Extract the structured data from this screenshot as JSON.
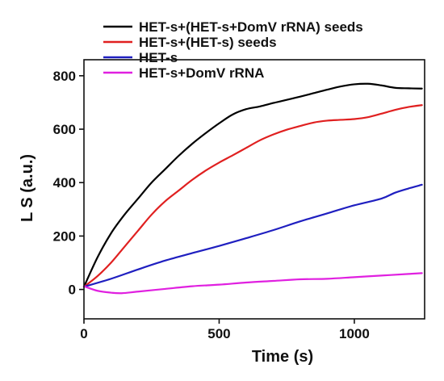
{
  "chart_data": {
    "type": "line",
    "title": "",
    "xlabel": "Time (s)",
    "ylabel": "L S (a.u.)",
    "xlim": [
      0,
      1260
    ],
    "ylim": [
      -110,
      860
    ],
    "xticks": [
      0,
      500,
      1000
    ],
    "yticks": [
      0,
      200,
      400,
      600,
      800
    ],
    "grid": false,
    "legend_position": "top",
    "series": [
      {
        "name": "HET-s+(HET-s+DomV rRNA) seeds",
        "color": "#000000",
        "x": [
          0,
          50,
          100,
          150,
          200,
          250,
          300,
          350,
          400,
          450,
          500,
          550,
          600,
          650,
          700,
          750,
          800,
          850,
          900,
          950,
          1000,
          1050,
          1100,
          1150,
          1200,
          1250
        ],
        "y": [
          10,
          120,
          210,
          280,
          340,
          400,
          450,
          500,
          545,
          585,
          622,
          655,
          675,
          685,
          698,
          710,
          722,
          735,
          748,
          760,
          768,
          770,
          764,
          755,
          753,
          752
        ]
      },
      {
        "name": "HET-s+(HET-s) seeds",
        "color": "#e02020",
        "x": [
          0,
          50,
          100,
          150,
          200,
          250,
          300,
          350,
          400,
          450,
          500,
          550,
          600,
          650,
          700,
          750,
          800,
          850,
          900,
          950,
          1000,
          1050,
          1100,
          1150,
          1200,
          1250
        ],
        "y": [
          10,
          50,
          100,
          160,
          220,
          280,
          330,
          370,
          410,
          445,
          475,
          502,
          530,
          558,
          580,
          598,
          612,
          625,
          632,
          635,
          638,
          645,
          658,
          672,
          683,
          690
        ]
      },
      {
        "name": "HET-s",
        "color": "#1f1fc0",
        "x": [
          0,
          100,
          200,
          300,
          400,
          500,
          600,
          700,
          800,
          900,
          1000,
          1100,
          1150,
          1200,
          1250
        ],
        "y": [
          10,
          40,
          75,
          108,
          136,
          163,
          192,
          222,
          255,
          285,
          315,
          340,
          362,
          378,
          392
        ]
      },
      {
        "name": "HET-s+DomV rRNA",
        "color": "#e020e0",
        "x": [
          0,
          50,
          100,
          140,
          200,
          300,
          400,
          500,
          600,
          700,
          800,
          900,
          1000,
          1100,
          1200,
          1250
        ],
        "y": [
          12,
          -5,
          -12,
          -14,
          -8,
          2,
          12,
          18,
          26,
          32,
          38,
          40,
          46,
          52,
          58,
          61
        ]
      }
    ]
  }
}
